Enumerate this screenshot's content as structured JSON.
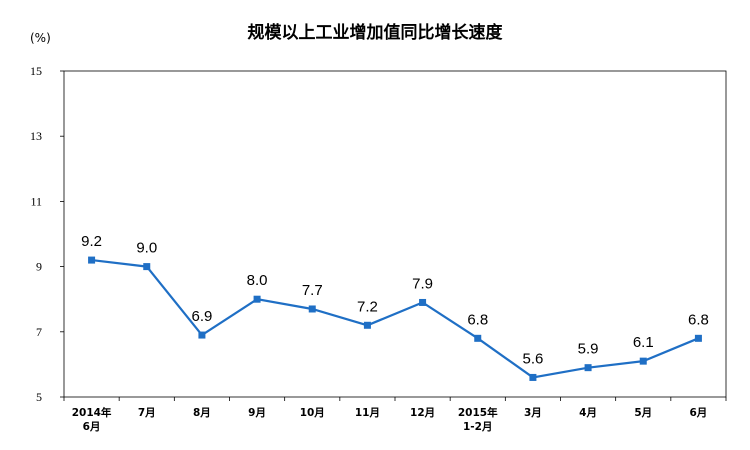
{
  "chart_data": {
    "type": "line",
    "title": "规模以上工业增加值同比增长速度",
    "unit_label": "(%)",
    "categories": [
      [
        "2014年",
        "6月"
      ],
      [
        "7月"
      ],
      [
        "8月"
      ],
      [
        "9月"
      ],
      [
        "10月"
      ],
      [
        "11月"
      ],
      [
        "12月"
      ],
      [
        "2015年",
        "1-2月"
      ],
      [
        "3月"
      ],
      [
        "4月"
      ],
      [
        "5月"
      ],
      [
        "6月"
      ]
    ],
    "series": [
      {
        "values": [
          9.2,
          9.0,
          6.9,
          8.0,
          7.7,
          7.2,
          7.9,
          6.8,
          5.6,
          5.9,
          6.1,
          6.8
        ]
      }
    ],
    "data_labels": [
      "9.2",
      "9.0",
      "6.9",
      "8.0",
      "7.7",
      "7.2",
      "7.9",
      "6.8",
      "5.6",
      "5.9",
      "6.1",
      "6.8"
    ],
    "ylim": [
      5,
      15
    ],
    "yticks": [
      "5",
      "7",
      "9",
      "11",
      "13",
      "15"
    ],
    "grid": false,
    "legend": "none",
    "colors": {
      "line": "#1f6fc5",
      "marker": "#1f6fc5",
      "axis": "#000000"
    }
  }
}
